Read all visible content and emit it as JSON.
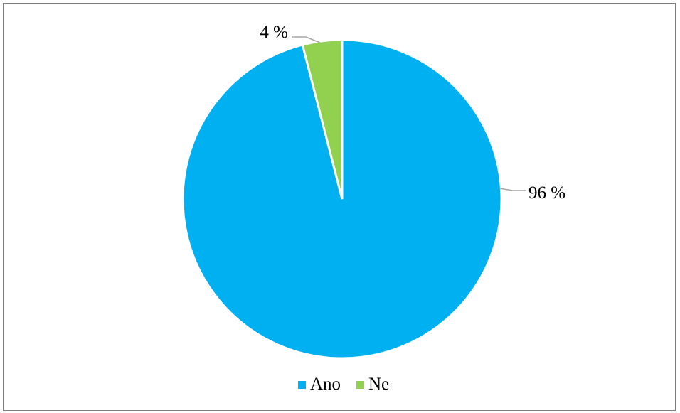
{
  "chart_data": {
    "type": "pie",
    "title": "",
    "categories": [
      "Ano",
      "Ne"
    ],
    "values": [
      96,
      4
    ],
    "data_labels": [
      "96 %",
      "4 %"
    ],
    "colors": [
      "#00b0f0",
      "#92d050"
    ],
    "legend": {
      "position": "bottom",
      "entries": [
        "Ano",
        "Ne"
      ]
    }
  }
}
